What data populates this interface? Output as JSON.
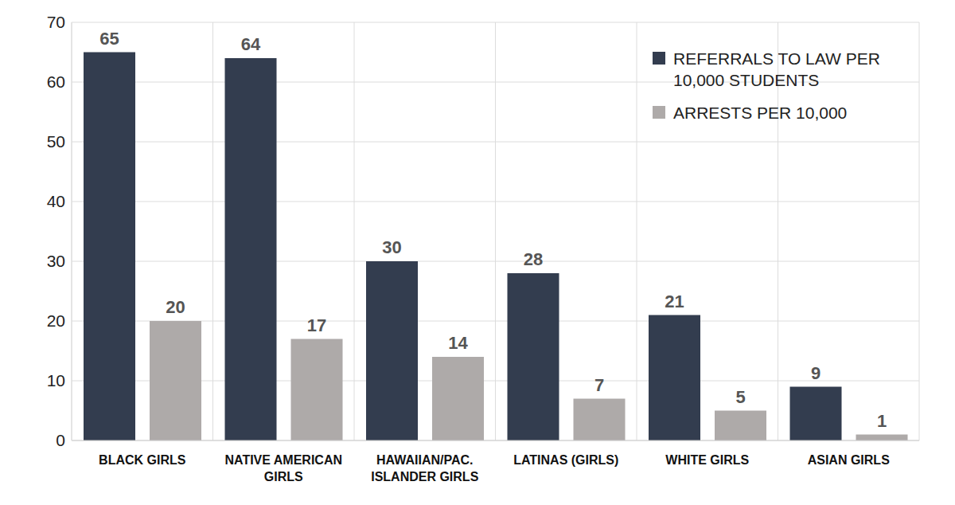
{
  "chart_data": {
    "type": "bar",
    "categories": [
      "BLACK GIRLS",
      "NATIVE AMERICAN GIRLS",
      "HAWAIIAN/PAC. ISLANDER GIRLS",
      "LATINAS (GIRLS)",
      "WHITE GIRLS",
      "ASIAN GIRLS"
    ],
    "series": [
      {
        "name": "REFERRALS TO LAW PER 10,000 STUDENTS",
        "color": "#333d4f",
        "values": [
          65,
          64,
          30,
          28,
          21,
          9
        ]
      },
      {
        "name": "ARRESTS PER 10,000",
        "color": "#aeaaa9",
        "values": [
          20,
          17,
          14,
          7,
          5,
          1
        ]
      }
    ],
    "ylim": [
      0,
      70
    ],
    "yticks": [
      0,
      10,
      20,
      30,
      40,
      50,
      60,
      70
    ],
    "grid": true,
    "legend": "upper right",
    "data_labels": true
  }
}
